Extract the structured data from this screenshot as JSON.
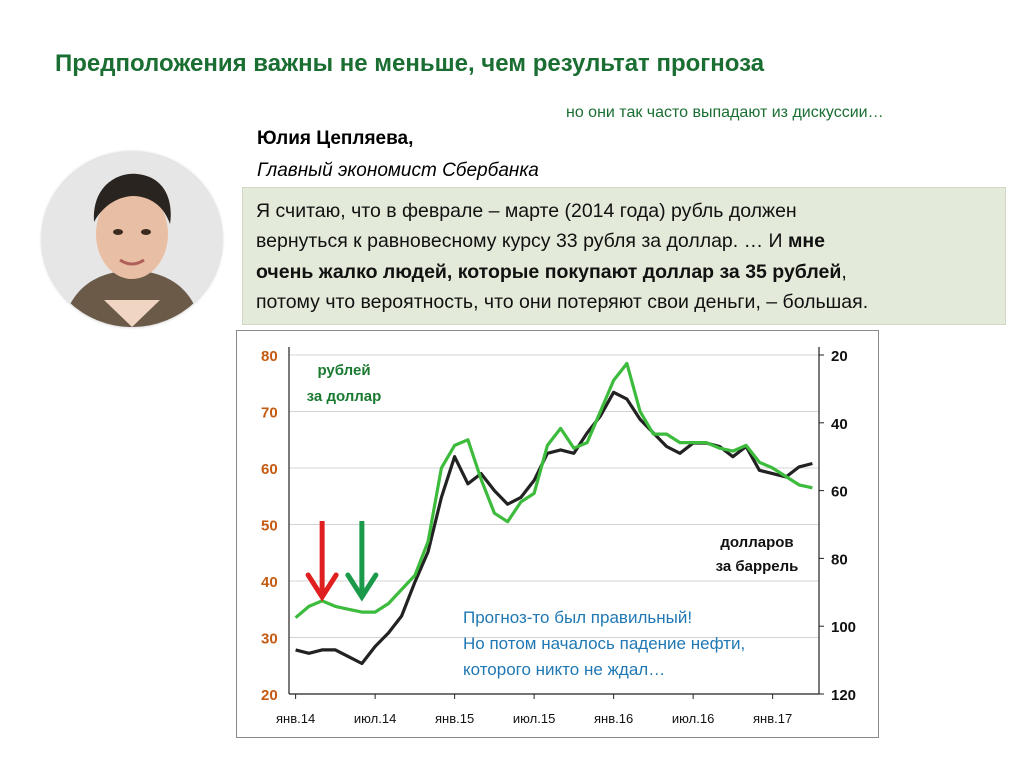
{
  "slide": {
    "title": "Предположения важны не меньше, чем результат прогноза",
    "subtitle": "но они так часто выпадают из дискуссии…"
  },
  "author": {
    "name": "Юлия Цепляева,",
    "role": "Главный экономист Сбербанка"
  },
  "quote": {
    "line1": "Я считаю, что в феврале – марте (2014 года) рубль должен",
    "line2": "вернуться к равновесному курсу 33 рубля за доллар. … И",
    "line2_bold": "мне",
    "line3_bold": "очень жалко людей, которые покупают доллар за 35 рублей",
    "line3_end": ",",
    "line4": "потому что вероятность, что они потеряют свои деньги, – большая."
  },
  "colors": {
    "title": "#1a6e32",
    "rub_line": "#3dbb3d",
    "oil_line": "#222222",
    "left_axis": "#c55a11",
    "red_arrow": "#e02020",
    "green_arrow": "#1a9a4a",
    "annotation": "#1f78b4",
    "quote_bg": "#e3ead9"
  },
  "chart_data": {
    "type": "line",
    "x": [
      "2014-01",
      "2014-02",
      "2014-03",
      "2014-04",
      "2014-05",
      "2014-06",
      "2014-07",
      "2014-08",
      "2014-09",
      "2014-10",
      "2014-11",
      "2014-12",
      "2015-01",
      "2015-02",
      "2015-03",
      "2015-04",
      "2015-05",
      "2015-06",
      "2015-07",
      "2015-08",
      "2015-09",
      "2015-10",
      "2015-11",
      "2015-12",
      "2016-01",
      "2016-02",
      "2016-03",
      "2016-04",
      "2016-05",
      "2016-06",
      "2016-07",
      "2016-08",
      "2016-09",
      "2016-10",
      "2016-11",
      "2016-12",
      "2017-01",
      "2017-02",
      "2017-03",
      "2017-04"
    ],
    "x_tick_labels": [
      "янв.14",
      "июл.14",
      "янв.15",
      "июл.15",
      "янв.16",
      "июл.16",
      "янв.17"
    ],
    "left_axis": {
      "ticks": [
        20,
        30,
        40,
        50,
        60,
        70,
        80
      ],
      "range": [
        20,
        80
      ],
      "label": "рублей за доллар"
    },
    "right_axis": {
      "ticks": [
        20,
        40,
        60,
        80,
        100,
        120
      ],
      "range": [
        120,
        20
      ],
      "inverted": true,
      "label": "долларов за баррель"
    },
    "series": [
      {
        "name": "рублей за доллар",
        "axis": "left",
        "values": [
          33.5,
          35.5,
          36.5,
          35.5,
          35.0,
          34.5,
          34.5,
          36.0,
          38.5,
          41.0,
          47.0,
          60.0,
          64.0,
          65.0,
          58.0,
          52.0,
          50.5,
          54.0,
          55.5,
          64.0,
          67.0,
          63.5,
          64.5,
          70.0,
          75.5,
          78.5,
          70.0,
          66.0,
          66.0,
          64.5,
          64.5,
          64.5,
          63.5,
          63.0,
          64.0,
          61.0,
          60.0,
          58.5,
          57.0,
          56.5
        ]
      },
      {
        "name": "долларов за баррель",
        "axis": "right",
        "values": [
          107,
          108,
          107,
          107,
          109,
          111,
          106,
          102,
          97,
          87,
          78,
          62,
          50,
          58,
          55,
          60,
          64,
          62,
          57,
          49,
          48,
          49,
          43,
          38,
          31,
          33,
          39,
          43,
          47,
          49,
          46,
          46,
          47,
          50,
          47,
          54,
          55,
          56,
          53,
          52
        ]
      }
    ],
    "label_top": [
      "рублей",
      "за доллар"
    ],
    "label_bottom": [
      "долларов",
      "за баррель"
    ],
    "annotation": [
      "Прогноз-то был правильный!",
      "Но потом началось падение нефти,",
      "которого никто не ждал…"
    ],
    "markers": [
      {
        "kind": "red-arrow",
        "x": "2014-03"
      },
      {
        "kind": "green-arrow",
        "x": "2014-06"
      }
    ],
    "grid": true
  }
}
